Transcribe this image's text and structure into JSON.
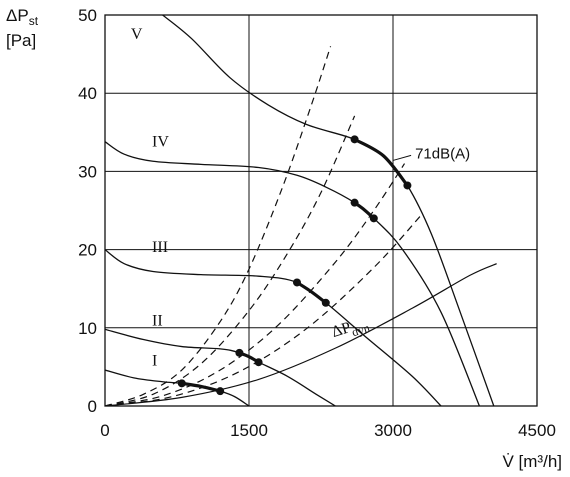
{
  "chart_data": {
    "type": "line",
    "title": "",
    "y_axis": {
      "symbol": "ΔP",
      "sub": "st",
      "unit": "[Pa]",
      "range": [
        0,
        50
      ],
      "ticks": [
        0,
        10,
        20,
        30,
        40,
        50
      ]
    },
    "x_axis": {
      "label": "V̇ [m³/h]",
      "range": [
        0,
        4500
      ],
      "ticks": [
        0,
        1500,
        3000,
        4500
      ]
    },
    "grid": "major",
    "fan_curves": [
      {
        "name": "I",
        "label_at": [
          490,
          5.2
        ],
        "points": [
          [
            0,
            4.6
          ],
          [
            300,
            3.6
          ],
          [
            600,
            3.1
          ],
          [
            800,
            2.9
          ],
          [
            1000,
            2.5
          ],
          [
            1200,
            1.9
          ],
          [
            1350,
            1.2
          ],
          [
            1500,
            0
          ]
        ],
        "operating_range": [
          [
            800,
            2.9
          ],
          [
            1000,
            2.5
          ],
          [
            1200,
            1.9
          ]
        ]
      },
      {
        "name": "II",
        "label_at": [
          490,
          10.3
        ],
        "points": [
          [
            0,
            9.8
          ],
          [
            400,
            8.5
          ],
          [
            800,
            7.6
          ],
          [
            1200,
            7.3
          ],
          [
            1400,
            6.8
          ],
          [
            1600,
            5.6
          ],
          [
            1900,
            3.8
          ],
          [
            2200,
            1.5
          ],
          [
            2400,
            0
          ]
        ],
        "operating_range": [
          [
            1400,
            6.8
          ],
          [
            1500,
            6.3
          ],
          [
            1600,
            5.6
          ]
        ]
      },
      {
        "name": "III",
        "label_at": [
          490,
          19.7
        ],
        "points": [
          [
            0,
            20
          ],
          [
            200,
            18.2
          ],
          [
            500,
            17.2
          ],
          [
            1000,
            16.8
          ],
          [
            1600,
            16.6
          ],
          [
            2000,
            15.8
          ],
          [
            2300,
            13.2
          ],
          [
            2700,
            9
          ],
          [
            3200,
            3.8
          ],
          [
            3500,
            0
          ]
        ],
        "operating_range": [
          [
            2000,
            15.8
          ],
          [
            2150,
            14.6
          ],
          [
            2300,
            13.2
          ]
        ]
      },
      {
        "name": "IV",
        "label_at": [
          490,
          33.2
        ],
        "points": [
          [
            0,
            33.8
          ],
          [
            200,
            32.2
          ],
          [
            500,
            31.3
          ],
          [
            1000,
            30.9
          ],
          [
            1600,
            30.5
          ],
          [
            2000,
            29.5
          ],
          [
            2300,
            28
          ],
          [
            2600,
            26
          ],
          [
            2800,
            24
          ],
          [
            3100,
            20
          ],
          [
            3500,
            12
          ],
          [
            3900,
            0
          ]
        ],
        "operating_range": [
          [
            2600,
            26
          ],
          [
            2700,
            25.1
          ],
          [
            2800,
            24
          ]
        ]
      },
      {
        "name": "V",
        "label_at": [
          270,
          46.9
        ],
        "points": [
          [
            600,
            50
          ],
          [
            900,
            47
          ],
          [
            1300,
            42
          ],
          [
            1700,
            38.5
          ],
          [
            2100,
            36
          ],
          [
            2600,
            34.1
          ],
          [
            2900,
            32
          ],
          [
            3150,
            28.2
          ],
          [
            3400,
            22
          ],
          [
            3700,
            12
          ],
          [
            4050,
            0
          ]
        ],
        "operating_range": [
          [
            2600,
            34.1
          ],
          [
            2900,
            32
          ],
          [
            3150,
            28.2
          ]
        ]
      }
    ],
    "system_curves": [
      {
        "points": [
          [
            0,
            0
          ],
          [
            400,
            1.5
          ],
          [
            800,
            4.6
          ],
          [
            1200,
            10.8
          ],
          [
            1500,
            17.5
          ],
          [
            1850,
            28
          ],
          [
            2150,
            38.5
          ],
          [
            2350,
            46
          ]
        ]
      },
      {
        "points": [
          [
            0,
            0
          ],
          [
            500,
            1.5
          ],
          [
            1000,
            5.4
          ],
          [
            1500,
            12.2
          ],
          [
            1900,
            19.5
          ],
          [
            2250,
            27.3
          ],
          [
            2600,
            37.1
          ]
        ]
      },
      {
        "points": [
          [
            0,
            0
          ],
          [
            600,
            1.3
          ],
          [
            1200,
            4.6
          ],
          [
            1800,
            10.3
          ],
          [
            2400,
            18.4
          ],
          [
            2800,
            25
          ],
          [
            3120,
            31
          ]
        ]
      },
      {
        "points": [
          [
            0,
            0
          ],
          [
            700,
            1.2
          ],
          [
            1400,
            4.4
          ],
          [
            2100,
            9.9
          ],
          [
            2800,
            17.7
          ],
          [
            3300,
            24.5
          ]
        ]
      }
    ],
    "dynamic_pressure_curve": {
      "label": "ΔP",
      "label_sub": "dyn",
      "label_at": [
        2380,
        8.8
      ],
      "points": [
        [
          0,
          0
        ],
        [
          800,
          1.1
        ],
        [
          1600,
          3.4
        ],
        [
          2400,
          7.4
        ],
        [
          3200,
          12.5
        ],
        [
          3800,
          16.7
        ],
        [
          4080,
          18.2
        ]
      ]
    },
    "annotations": [
      {
        "text": "71dB(A)",
        "at": [
          3230,
          32.3
        ],
        "pointer_to": [
          3000,
          31.4
        ]
      }
    ]
  }
}
